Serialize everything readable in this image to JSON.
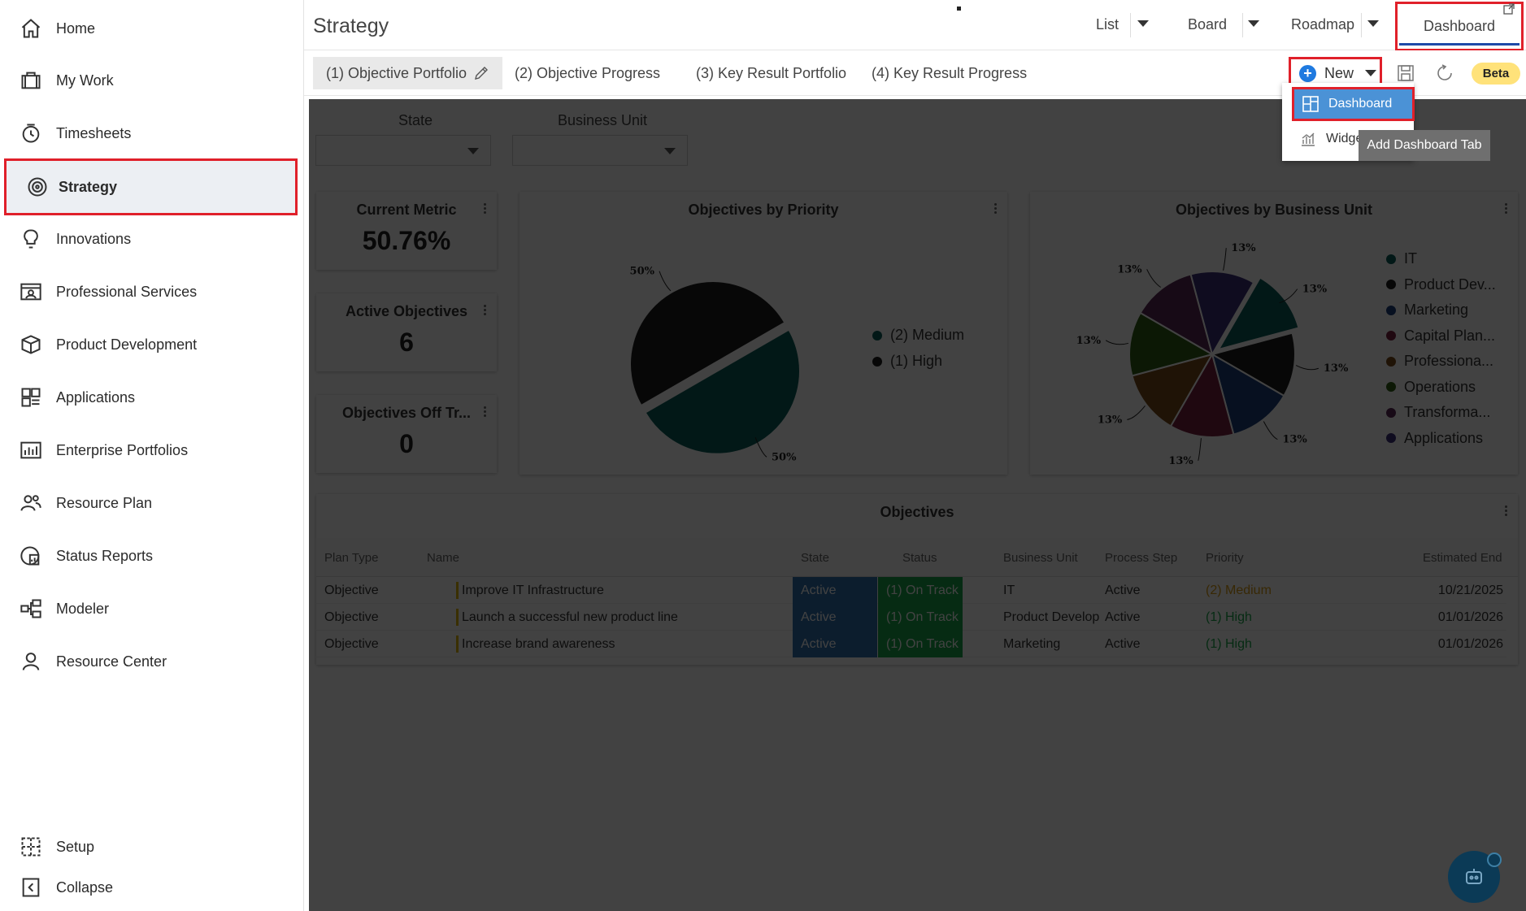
{
  "sidebar": {
    "items": [
      {
        "label": "Home",
        "icon": "home-icon"
      },
      {
        "label": "My Work",
        "icon": "briefcase-icon"
      },
      {
        "label": "Timesheets",
        "icon": "clock-icon"
      },
      {
        "label": "Strategy",
        "icon": "target-icon",
        "active": true
      },
      {
        "label": "Innovations",
        "icon": "lightbulb-icon"
      },
      {
        "label": "Professional Services",
        "icon": "id-card-icon"
      },
      {
        "label": "Product Development",
        "icon": "box-icon"
      },
      {
        "label": "Applications",
        "icon": "grid-icon"
      },
      {
        "label": "Enterprise Portfolios",
        "icon": "bar-chart-icon"
      },
      {
        "label": "Resource Plan",
        "icon": "people-icon"
      },
      {
        "label": "Status Reports",
        "icon": "report-icon"
      },
      {
        "label": "Modeler",
        "icon": "flow-icon"
      },
      {
        "label": "Resource Center",
        "icon": "person-icon"
      }
    ],
    "footer": [
      {
        "label": "Setup",
        "icon": "setup-icon"
      },
      {
        "label": "Collapse",
        "icon": "collapse-icon"
      }
    ]
  },
  "header": {
    "title": "Strategy",
    "views": {
      "list": "List",
      "board": "Board",
      "roadmap": "Roadmap",
      "dashboard": "Dashboard"
    }
  },
  "tabs": [
    "(1) Objective Portfolio",
    "(2) Objective Progress",
    "(3) Key Result Portfolio",
    "(4) Key Result Progress"
  ],
  "toolbar": {
    "new_label": "New",
    "beta_label": "Beta"
  },
  "new_menu": {
    "dashboard": "Dashboard",
    "widget": "Widget",
    "tooltip": "Add Dashboard Tab"
  },
  "filters": {
    "state_label": "State",
    "business_unit_label": "Business Unit"
  },
  "metrics": [
    {
      "title": "Current Metric",
      "value": "50.76%"
    },
    {
      "title": "Active Objectives",
      "value": "6"
    },
    {
      "title": "Objectives Off Tr...",
      "value": "0"
    }
  ],
  "priority_chart": {
    "title": "Objectives by Priority",
    "legend": [
      "(2) Medium",
      "(1) High"
    ]
  },
  "bu_chart": {
    "title": "Objectives by Business Unit",
    "legend": [
      "IT",
      "Product Dev...",
      "Marketing",
      "Capital Plan...",
      "Professiona...",
      "Operations",
      "Transforma...",
      "Applications"
    ]
  },
  "chart_data": [
    {
      "type": "pie",
      "title": "Objectives by Priority",
      "categories": [
        "(2) Medium",
        "(1) High"
      ],
      "values": [
        50,
        50
      ],
      "labels": [
        "50%",
        "50%"
      ],
      "colors": [
        "#0a5c58",
        "#1e1e1e"
      ],
      "legend_position": "right"
    },
    {
      "type": "pie",
      "title": "Objectives by Business Unit",
      "categories": [
        "IT",
        "Product Dev...",
        "Marketing",
        "Capital Plan...",
        "Professiona...",
        "Operations",
        "Transforma...",
        "Applications"
      ],
      "values": [
        12.5,
        12.5,
        12.5,
        12.5,
        12.5,
        12.5,
        12.5,
        12.5
      ],
      "labels": [
        "13%",
        "13%",
        "13%",
        "13%",
        "13%",
        "13%",
        "13%",
        "13%"
      ],
      "colors": [
        "#0a5c58",
        "#1e1e1e",
        "#1b3f7d",
        "#7a1f3f",
        "#7a4a1a",
        "#2f5e16",
        "#5a2a55",
        "#3b2e7a"
      ],
      "legend_position": "right"
    }
  ],
  "table": {
    "title": "Objectives",
    "columns": [
      "Plan Type",
      "Name",
      "State",
      "Status",
      "Business Unit",
      "Process Step",
      "Priority",
      "Estimated End"
    ],
    "rows": [
      [
        "Objective",
        "Improve IT Infrastructure",
        "Active",
        "(1) On Track",
        "IT",
        "Active",
        "(2) Medium",
        "10/21/2025"
      ],
      [
        "Objective",
        "Launch a successful new product line",
        "Active",
        "(1) On Track",
        "Product Develop",
        "Active",
        "(1) High",
        "01/01/2026"
      ],
      [
        "Objective",
        "Increase brand awareness",
        "Active",
        "(1) On Track",
        "Marketing",
        "Active",
        "(1) High",
        "01/01/2026"
      ]
    ],
    "colors": {
      "state_bg": "#2f6fae",
      "status_bg": "#1aa84a",
      "name_marker": "#e0b400",
      "priority_medium": "#d79a12",
      "priority_high": "#1aa84a"
    }
  }
}
